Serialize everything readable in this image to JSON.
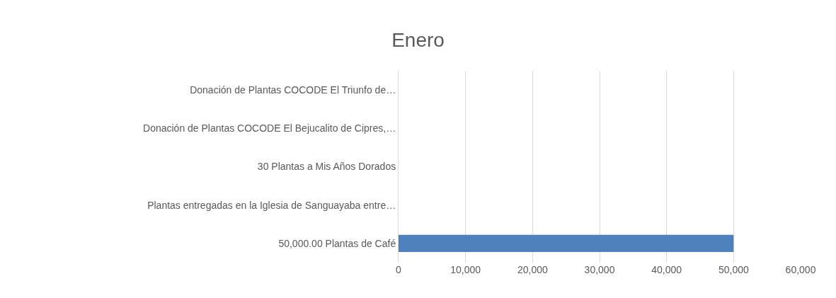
{
  "chart_data": {
    "type": "bar",
    "orientation": "horizontal",
    "title": "Enero",
    "categories": [
      "Donación de Plantas COCODE El Triunfo de…",
      "Donación de Plantas COCODE El Bejucalito de Cipres,…",
      "30 Plantas a Mis Años Dorados",
      "Plantas entregadas en la Iglesia de Sanguayaba entre…",
      "50,000.00 Plantas de Café"
    ],
    "values": [
      0,
      0,
      0,
      0,
      50000
    ],
    "color": "#4f81bd",
    "xlim": [
      0,
      60000
    ],
    "xticks": [
      {
        "value": 0,
        "label": "0"
      },
      {
        "value": 10000,
        "label": "10,000"
      },
      {
        "value": 20000,
        "label": "20,000"
      },
      {
        "value": 30000,
        "label": "30,000"
      },
      {
        "value": 40000,
        "label": "40,000"
      },
      {
        "value": 50000,
        "label": "50,000"
      },
      {
        "value": 60000,
        "label": "60,000"
      }
    ],
    "grid": "x"
  }
}
